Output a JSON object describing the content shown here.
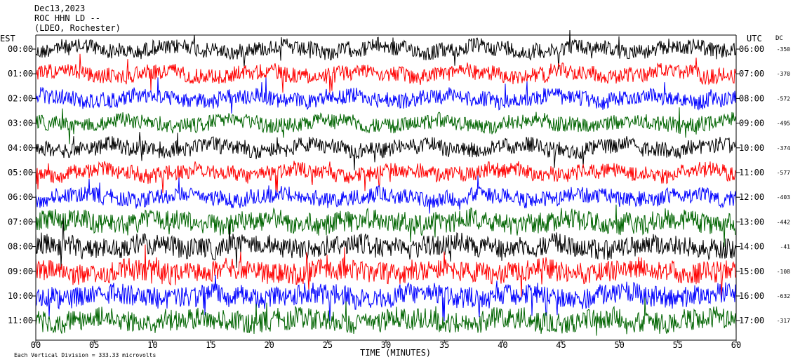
{
  "header": {
    "date": "Dec13,2023",
    "station": "ROC HHN LD --",
    "location": "(LDEO, Rochester)"
  },
  "left_axis_label": "EST",
  "right_axis_label": "UTC",
  "dc_label": "DC",
  "footer_note": "Each Vertical Division = 333.33 microvolts",
  "chart_data": {
    "type": "line",
    "title": "",
    "xlabel": "TIME (MINUTES)",
    "xlim": [
      0,
      60
    ],
    "x_ticks": [
      "00",
      "05",
      "10",
      "15",
      "20",
      "25",
      "30",
      "35",
      "40",
      "45",
      "50",
      "55",
      "60"
    ],
    "grid": false,
    "trace_colors": [
      "#000000",
      "#ff0000",
      "#0000ff",
      "#006400"
    ],
    "rows": [
      {
        "est": "00:00",
        "utc": "06:00",
        "dc": "-350"
      },
      {
        "est": "01:00",
        "utc": "07:00",
        "dc": "-370"
      },
      {
        "est": "02:00",
        "utc": "08:00",
        "dc": "-572"
      },
      {
        "est": "03:00",
        "utc": "09:00",
        "dc": "-495"
      },
      {
        "est": "04:00",
        "utc": "10:00",
        "dc": "-374"
      },
      {
        "est": "05:00",
        "utc": "11:00",
        "dc": "-577"
      },
      {
        "est": "06:00",
        "utc": "12:00",
        "dc": "-403"
      },
      {
        "est": "07:00",
        "utc": "13:00",
        "dc": "-442"
      },
      {
        "est": "08:00",
        "utc": "14:00",
        "dc": "-41"
      },
      {
        "est": "09:00",
        "utc": "15:00",
        "dc": "-108"
      },
      {
        "est": "10:00",
        "utc": "16:00",
        "dc": "-632"
      },
      {
        "est": "11:00",
        "utc": "17:00",
        "dc": "-317"
      }
    ]
  }
}
